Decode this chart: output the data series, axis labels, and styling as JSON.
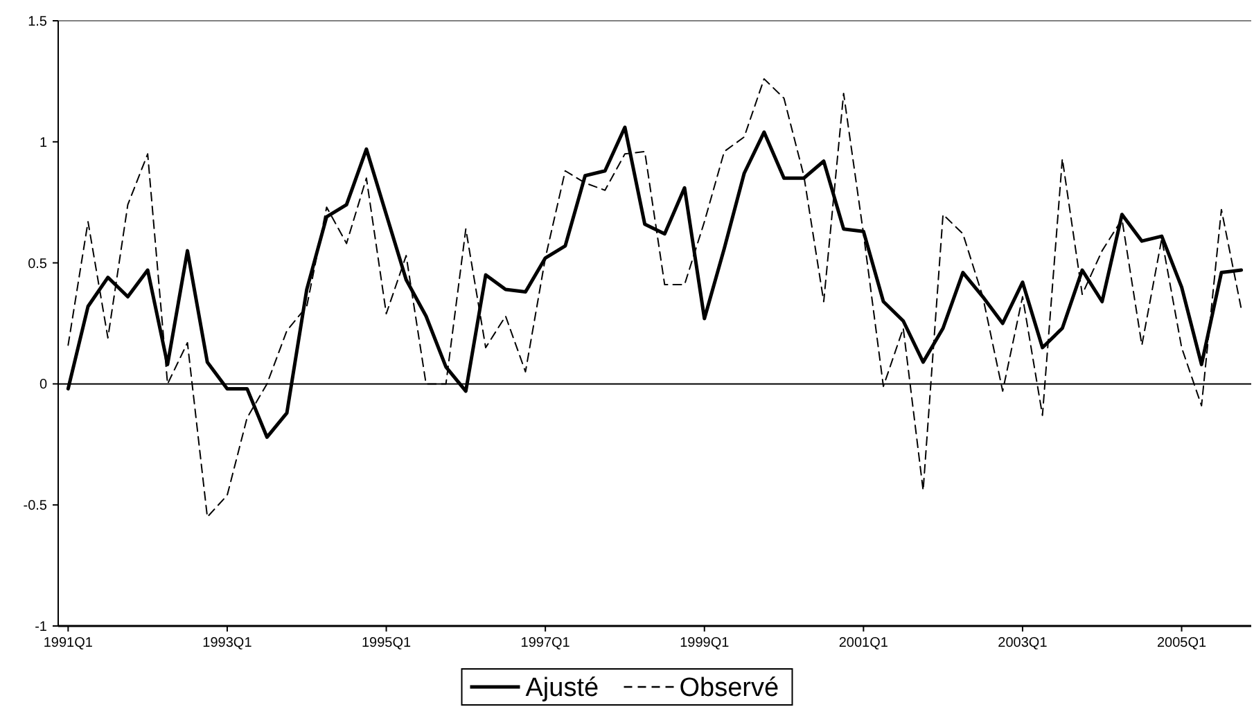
{
  "chart_data": {
    "type": "line",
    "categories": [
      "1991Q1",
      null,
      null,
      null,
      null,
      null,
      null,
      null,
      "1993Q1",
      null,
      null,
      null,
      null,
      null,
      null,
      null,
      "1995Q1",
      null,
      null,
      null,
      null,
      null,
      null,
      null,
      "1997Q1",
      null,
      null,
      null,
      null,
      null,
      null,
      null,
      "1999Q1",
      null,
      null,
      null,
      null,
      null,
      null,
      null,
      "2001Q1",
      null,
      null,
      null,
      null,
      null,
      null,
      null,
      "2003Q1",
      null,
      null,
      null,
      null,
      null,
      null,
      null,
      "2005Q1",
      null,
      null,
      null
    ],
    "series": [
      {
        "name": "Ajusté",
        "color": "#000000",
        "line_style": "solid",
        "values": [
          -0.02,
          0.32,
          0.44,
          0.36,
          0.47,
          0.08,
          0.55,
          0.09,
          -0.02,
          -0.02,
          -0.22,
          -0.12,
          0.39,
          0.69,
          0.74,
          0.97,
          0.7,
          0.43,
          0.28,
          0.07,
          -0.03,
          0.45,
          0.39,
          0.38,
          0.52,
          0.57,
          0.86,
          0.88,
          1.06,
          0.66,
          0.62,
          0.81,
          0.27,
          0.56,
          0.87,
          1.04,
          0.85,
          0.85,
          0.92,
          0.64,
          0.63,
          0.34,
          0.26,
          0.09,
          0.23,
          0.46,
          0.36,
          0.25,
          0.42,
          0.15,
          0.23,
          0.47,
          0.34,
          0.7,
          0.59,
          0.61,
          0.4,
          0.08,
          0.46,
          0.47
        ]
      },
      {
        "name": "Observé",
        "color": "#000000",
        "line_style": "dashed",
        "values": [
          0.16,
          0.67,
          0.19,
          0.74,
          0.95,
          0.0,
          0.17,
          -0.55,
          -0.46,
          -0.14,
          0.0,
          0.22,
          0.32,
          0.73,
          0.58,
          0.85,
          0.29,
          0.53,
          0.0,
          0.0,
          0.64,
          0.15,
          0.28,
          0.05,
          0.52,
          0.88,
          0.83,
          0.8,
          0.95,
          0.96,
          0.41,
          0.41,
          0.67,
          0.96,
          1.02,
          1.26,
          1.18,
          0.86,
          0.34,
          1.2,
          0.62,
          -0.01,
          0.23,
          -0.44,
          0.7,
          0.62,
          0.36,
          -0.03,
          0.36,
          -0.13,
          0.93,
          0.37,
          0.55,
          0.68,
          0.16,
          0.6,
          0.15,
          -0.09,
          0.72,
          0.31
        ]
      }
    ],
    "ylim": [
      -1,
      1.5
    ],
    "yticks": [
      -1,
      -0.5,
      0,
      0.5,
      1,
      1.5
    ],
    "ref_lines": [
      {
        "axis": "y",
        "value": 0,
        "color": "#000000"
      }
    ],
    "grid": false,
    "legend": "bottom",
    "marker": "none"
  }
}
